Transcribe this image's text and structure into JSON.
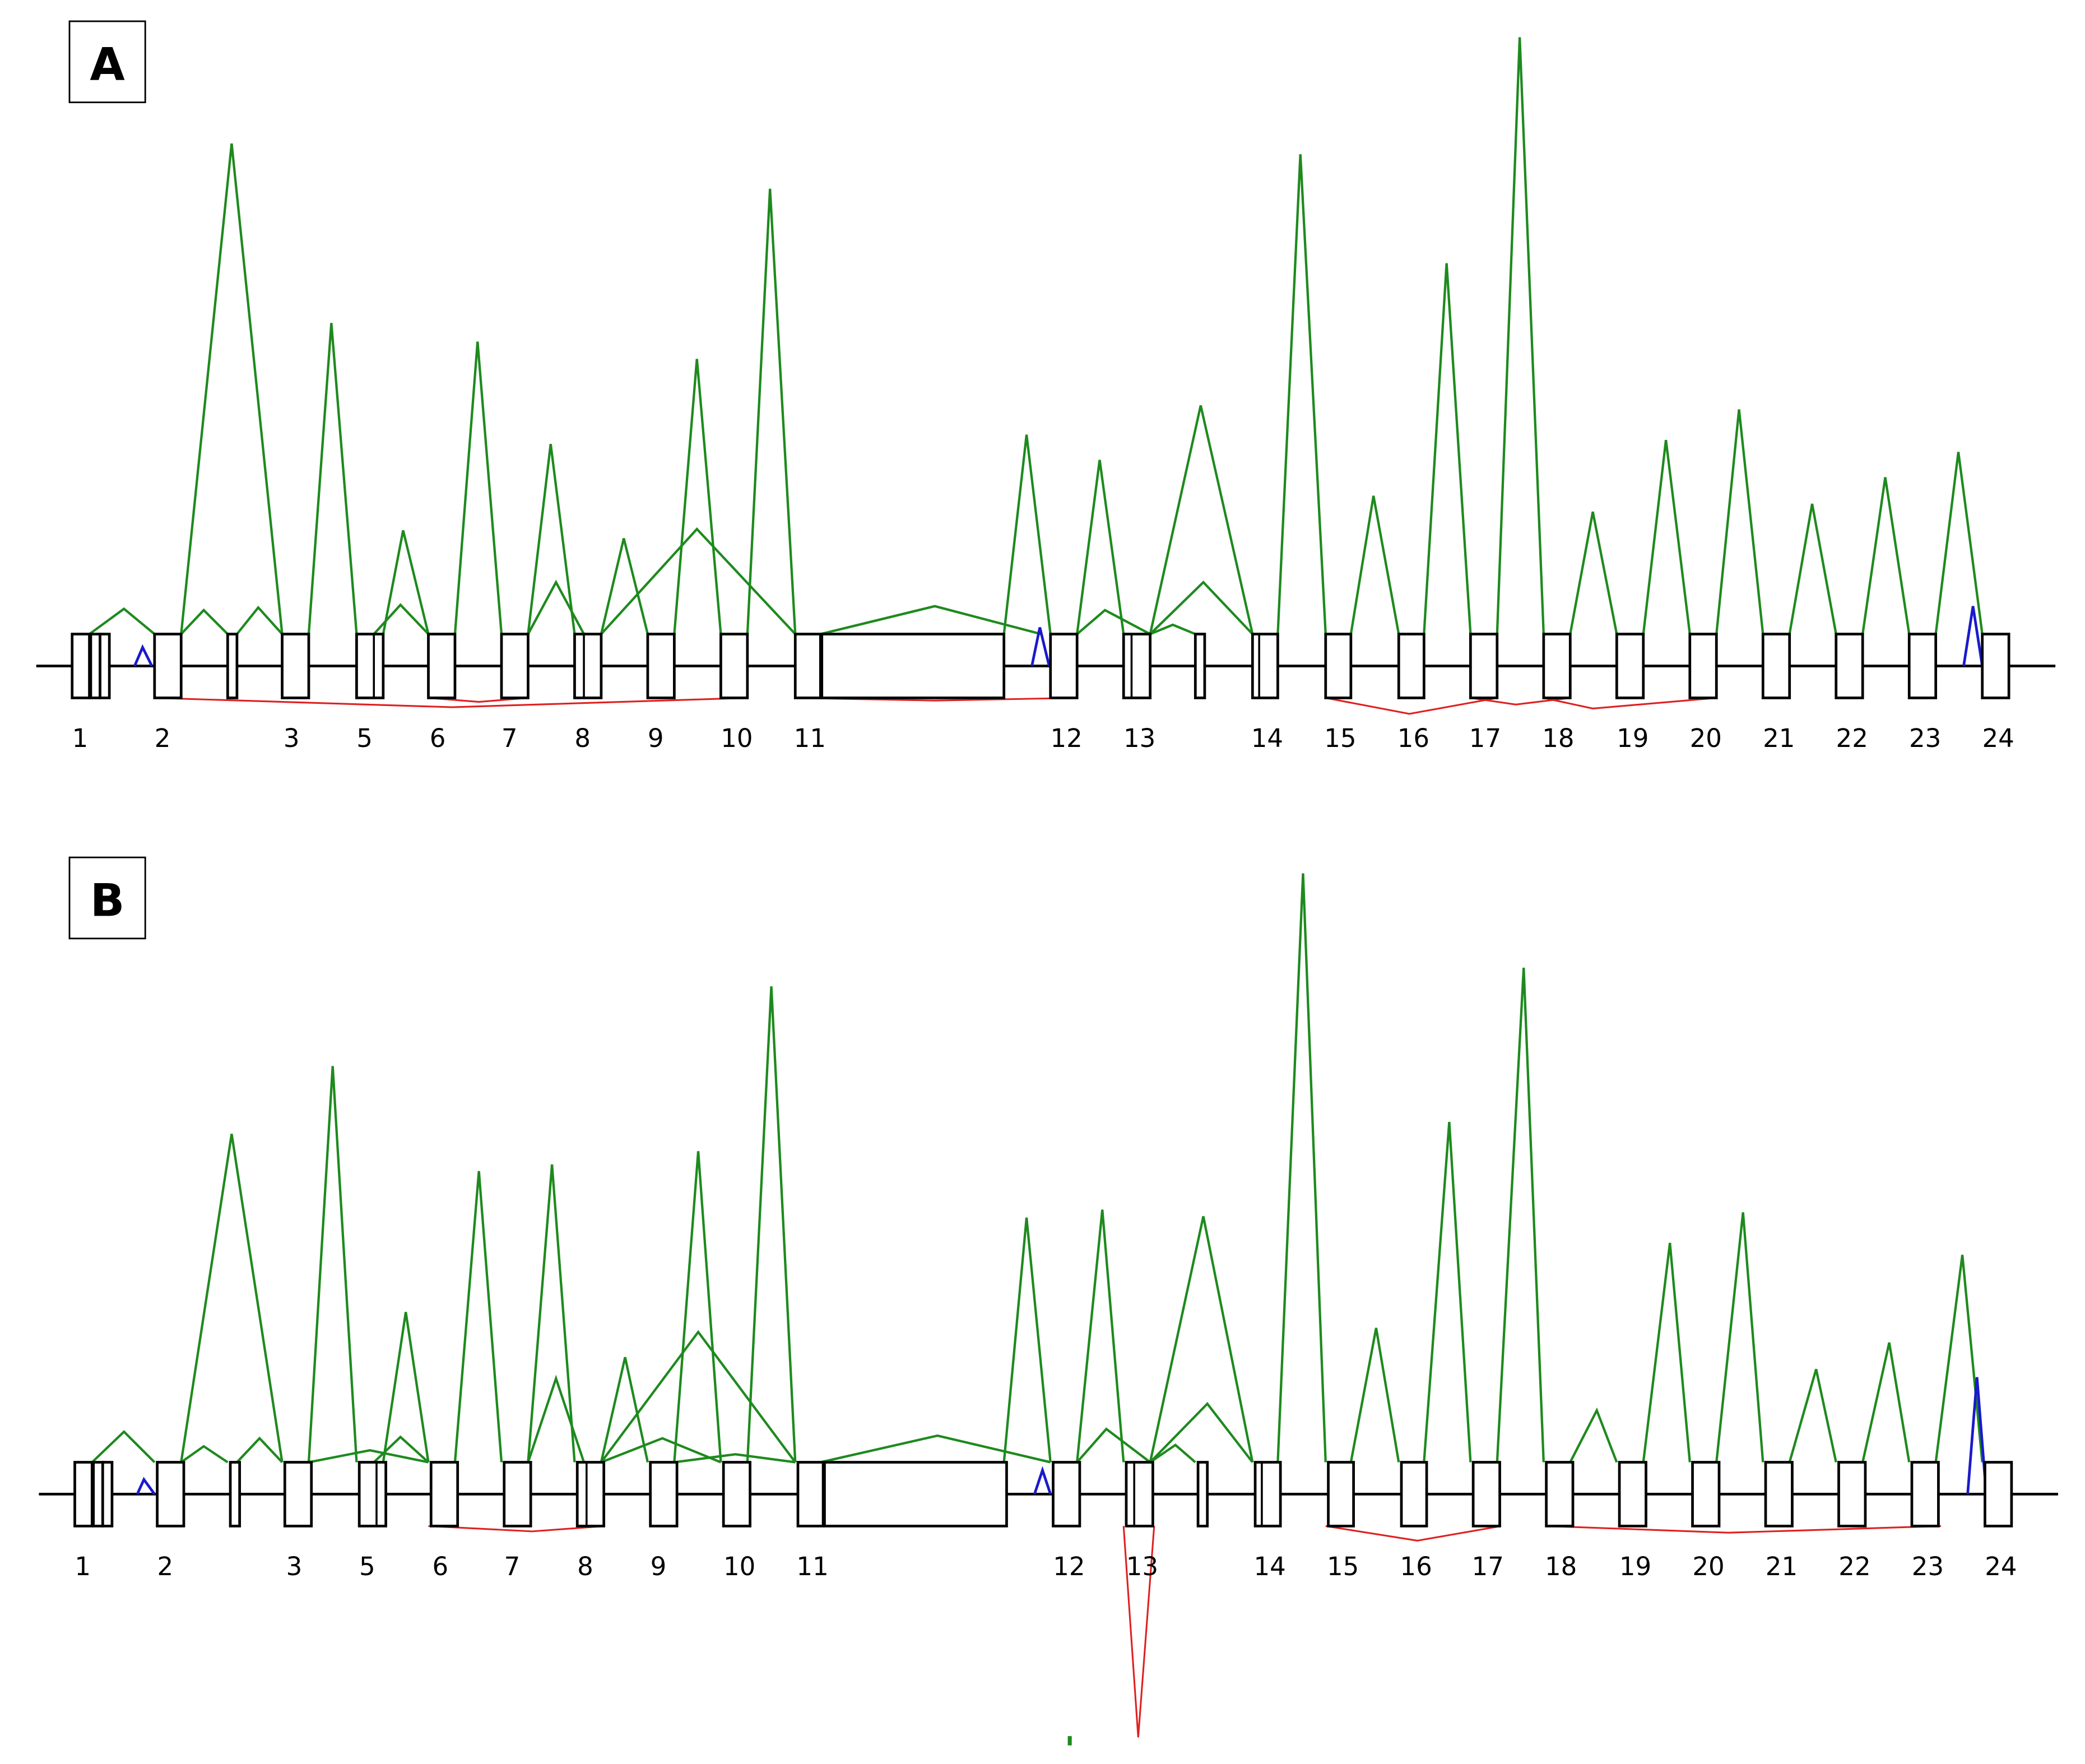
{
  "panels": [
    {
      "label": "A",
      "exon_labels": [
        "1",
        "2",
        "3",
        "5",
        "6",
        "7",
        "8",
        "9",
        "10",
        "11",
        "12",
        "13",
        "14",
        "15",
        "16",
        "17",
        "18",
        "19",
        "20",
        "21",
        "22",
        "23",
        "24"
      ]
    },
    {
      "label": "B",
      "exon_labels": [
        "1",
        "2",
        "3",
        "5",
        "6",
        "7",
        "8",
        "9",
        "10",
        "11",
        "12",
        "13",
        "14",
        "15",
        "16",
        "17",
        "18",
        "19",
        "20",
        "21",
        "22",
        "23",
        "24"
      ]
    }
  ]
}
